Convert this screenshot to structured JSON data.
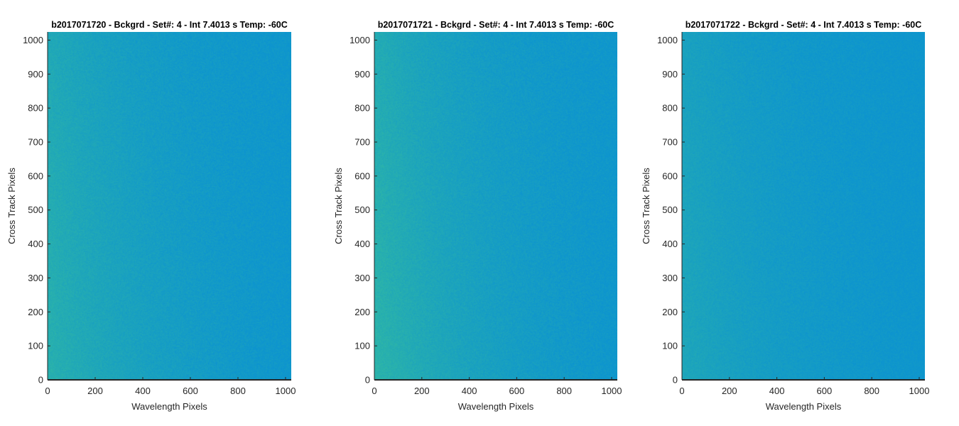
{
  "chart_data": [
    {
      "type": "heatmap",
      "title": "b2017071720 - Bckgrd - Set#: 4 - Int 7.4013 s Temp: -60C",
      "xlabel": "Wavelength Pixels",
      "ylabel": "Cross Track Pixels",
      "xlim": [
        0,
        1024
      ],
      "ylim": [
        0,
        1024
      ],
      "xticks": [
        0,
        200,
        400,
        600,
        800,
        1000
      ],
      "yticks": [
        0,
        100,
        200,
        300,
        400,
        500,
        600,
        700,
        800,
        900,
        1000
      ],
      "grid": false,
      "colormap": {
        "low": "#0d94cf",
        "high": "#2fb7a6"
      },
      "gradient_strength": 0.85,
      "noise": 0.35
    },
    {
      "type": "heatmap",
      "title": "b2017071721 - Bckgrd - Set#: 4 - Int 7.4013 s Temp: -60C",
      "xlabel": "Wavelength Pixels",
      "ylabel": "Cross Track Pixels",
      "xlim": [
        0,
        1024
      ],
      "ylim": [
        0,
        1024
      ],
      "xticks": [
        0,
        200,
        400,
        600,
        800,
        1000
      ],
      "yticks": [
        0,
        100,
        200,
        300,
        400,
        500,
        600,
        700,
        800,
        900,
        1000
      ],
      "grid": false,
      "colormap": {
        "low": "#0d94cf",
        "high": "#2fb7a6"
      },
      "gradient_strength": 0.95,
      "noise": 0.35
    },
    {
      "type": "heatmap",
      "title": "b2017071722 - Bckgrd - Set#: 4 - Int 7.4013 s Temp: -60C",
      "xlabel": "Wavelength Pixels",
      "ylabel": "Cross Track Pixels",
      "xlim": [
        0,
        1024
      ],
      "ylim": [
        0,
        1024
      ],
      "xticks": [
        0,
        200,
        400,
        600,
        800,
        1000
      ],
      "yticks": [
        0,
        100,
        200,
        300,
        400,
        500,
        600,
        700,
        800,
        900,
        1000
      ],
      "grid": false,
      "colormap": {
        "low": "#0d94cf",
        "high": "#2fb7a6"
      },
      "gradient_strength": 0.55,
      "noise": 0.3
    }
  ]
}
